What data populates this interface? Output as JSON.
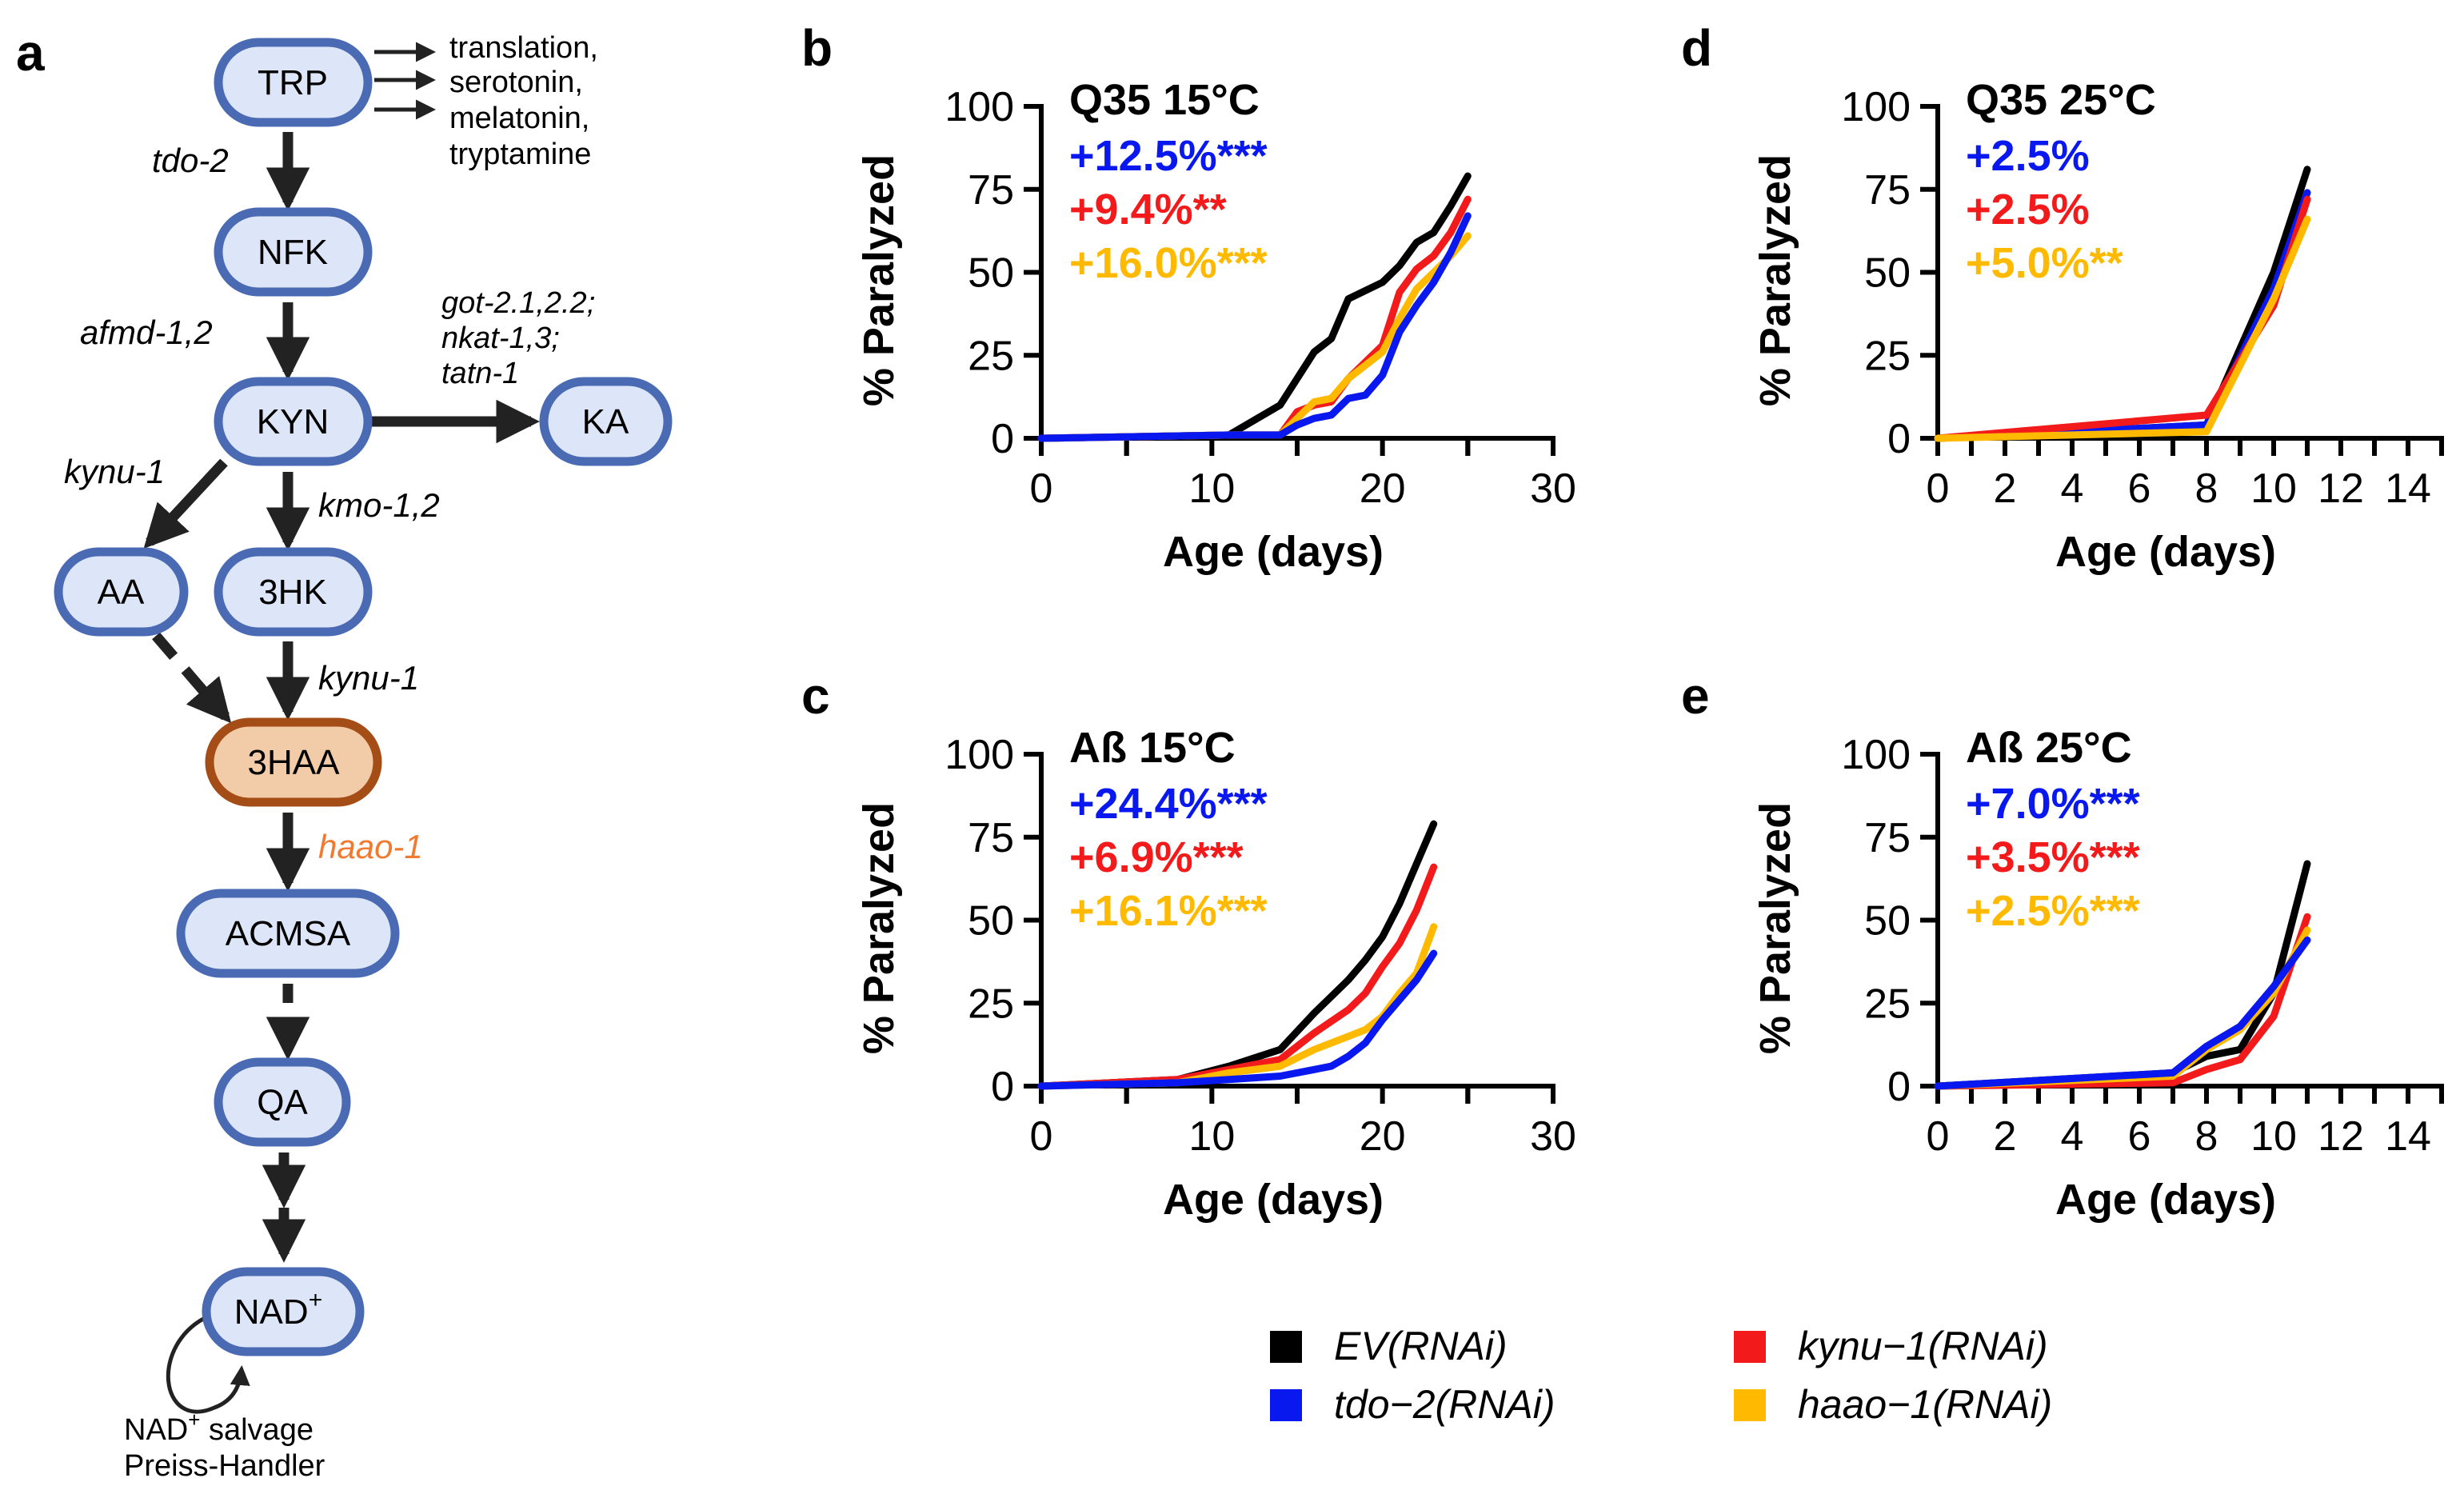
{
  "colors": {
    "black": "#000000",
    "blue": "#0a18f0",
    "red": "#f21a1a",
    "gold": "#ffba00",
    "node_fill": "#dde6f8",
    "node_stroke": "#4a6ab4",
    "hl_fill": "#f2cba8",
    "hl_stroke": "#a54d16",
    "hl_text": "#f07a30"
  },
  "panel_a": {
    "letter": "a",
    "nodes": [
      {
        "id": "trp",
        "label": "TRP"
      },
      {
        "id": "nfk",
        "label": "NFK"
      },
      {
        "id": "kyn",
        "label": "KYN"
      },
      {
        "id": "ka",
        "label": "KA"
      },
      {
        "id": "aa",
        "label": "AA"
      },
      {
        "id": "3hk",
        "label": "3HK"
      },
      {
        "id": "3haa",
        "label": "3HAA"
      },
      {
        "id": "acmsa",
        "label": "ACMSA"
      },
      {
        "id": "qa",
        "label": "QA"
      },
      {
        "id": "nad",
        "label": "NAD",
        "sup": "+"
      }
    ],
    "enzymes": {
      "tdo": "tdo-2",
      "afmd": "afmd-1,2",
      "ka_enzymes": [
        "got-2.1,2.2;",
        "nkat-1,3;",
        "tatn-1"
      ],
      "kynu_left": "kynu-1",
      "kmo": "kmo-1,2",
      "kynu_right": "kynu-1",
      "haao": "haao-1"
    },
    "trp_fates": [
      "translation,",
      "serotonin,",
      "melatonin,",
      "tryptamine"
    ],
    "salvage": {
      "line1_pre": "NAD",
      "line1_sup": "+",
      "line1_post": " salvage",
      "line2": "Preiss-Handler"
    }
  },
  "legend": [
    {
      "label": "EV(RNAi)",
      "color": "#000000"
    },
    {
      "label": "tdo−2(RNAi)",
      "color": "#0a18f0"
    },
    {
      "label": "kynu−1(RNAi)",
      "color": "#f21a1a"
    },
    {
      "label": "haao−1(RNAi)",
      "color": "#ffba00"
    }
  ],
  "chart_data": [
    {
      "panel": "b",
      "type": "line",
      "title": "Q35 15°C",
      "xlabel": "Age (days)",
      "ylabel": "% Paralyzed",
      "xlim": [
        0,
        30
      ],
      "ylim": [
        0,
        100
      ],
      "xticks": [
        0,
        10,
        20,
        30
      ],
      "yticks": [
        0,
        25,
        50,
        75,
        100
      ],
      "annotations": [
        {
          "value": "+12.5%",
          "stars": "***",
          "color": "#0a18f0"
        },
        {
          "value": "+9.4%",
          "stars": "**",
          "color": "#f21a1a"
        },
        {
          "value": "+16.0%",
          "stars": "***",
          "color": "#ffba00"
        }
      ],
      "series": [
        {
          "name": "EV(RNAi)",
          "color": "#000000",
          "x": [
            0,
            11,
            14,
            16,
            17,
            18,
            20,
            21,
            22,
            23,
            24,
            25
          ],
          "y": [
            0,
            1,
            10,
            26,
            30,
            42,
            47,
            52,
            59,
            62,
            70,
            79
          ]
        },
        {
          "name": "kynu−1(RNAi)",
          "color": "#f21a1a",
          "x": [
            0,
            11,
            14,
            15,
            16,
            17,
            18,
            20,
            21,
            22,
            23,
            24,
            25
          ],
          "y": [
            0,
            1,
            1,
            8,
            10,
            11,
            18,
            28,
            44,
            51,
            55,
            62,
            72
          ]
        },
        {
          "name": "haao−1(RNAi)",
          "color": "#ffba00",
          "x": [
            0,
            11,
            14,
            15,
            16,
            17,
            18,
            20,
            21,
            22,
            23,
            24,
            25
          ],
          "y": [
            0,
            1,
            1,
            6,
            11,
            12,
            18,
            26,
            36,
            45,
            50,
            55,
            61
          ]
        },
        {
          "name": "tdo−2(RNAi)",
          "color": "#0a18f0",
          "x": [
            0,
            11,
            14,
            15,
            16,
            17,
            18,
            19,
            20,
            21,
            22,
            23,
            24,
            25
          ],
          "y": [
            0,
            1,
            1,
            4,
            6,
            7,
            12,
            13,
            19,
            32,
            40,
            47,
            56,
            67
          ]
        }
      ]
    },
    {
      "panel": "c",
      "type": "line",
      "title": "Aß 15°C",
      "xlabel": "Age (days)",
      "ylabel": "% Paralyzed",
      "xlim": [
        0,
        30
      ],
      "ylim": [
        0,
        100
      ],
      "xticks": [
        0,
        10,
        20,
        30
      ],
      "yticks": [
        0,
        25,
        50,
        75,
        100
      ],
      "annotations": [
        {
          "value": "+24.4%",
          "stars": "***",
          "color": "#0a18f0"
        },
        {
          "value": "+6.9%",
          "stars": "***",
          "color": "#f21a1a"
        },
        {
          "value": "+16.1%",
          "stars": "***",
          "color": "#ffba00"
        }
      ],
      "series": [
        {
          "name": "EV(RNAi)",
          "color": "#000000",
          "x": [
            0,
            8,
            11,
            14,
            16,
            18,
            19,
            20,
            21,
            22,
            23
          ],
          "y": [
            0,
            2,
            6,
            11,
            22,
            32,
            38,
            45,
            55,
            67,
            79
          ]
        },
        {
          "name": "kynu−1(RNAi)",
          "color": "#f21a1a",
          "x": [
            0,
            8,
            11,
            14,
            16,
            18,
            19,
            20,
            21,
            22,
            23
          ],
          "y": [
            0,
            2,
            5,
            8,
            16,
            23,
            28,
            36,
            43,
            53,
            66
          ]
        },
        {
          "name": "haao−1(RNAi)",
          "color": "#ffba00",
          "x": [
            0,
            8,
            11,
            14,
            16,
            18,
            19,
            20,
            21,
            22,
            23
          ],
          "y": [
            0,
            1,
            4,
            6,
            11,
            15,
            17,
            21,
            28,
            34,
            48
          ]
        },
        {
          "name": "tdo−2(RNAi)",
          "color": "#0a18f0",
          "x": [
            0,
            8,
            11,
            14,
            16,
            17,
            18,
            19,
            20,
            21,
            22,
            23
          ],
          "y": [
            0,
            1,
            2,
            3,
            5,
            6,
            9,
            13,
            20,
            26,
            32,
            40
          ]
        }
      ]
    },
    {
      "panel": "d",
      "type": "line",
      "title": "Q35 25°C",
      "xlabel": "Age (days)",
      "ylabel": "% Paralyzed",
      "xlim": [
        0,
        15
      ],
      "ylim": [
        0,
        100
      ],
      "xticks": [
        0,
        2,
        4,
        6,
        8,
        10,
        12,
        14
      ],
      "yticks": [
        0,
        25,
        50,
        75,
        100
      ],
      "annotations": [
        {
          "value": "+2.5%",
          "stars": "",
          "color": "#0a18f0"
        },
        {
          "value": "+2.5%",
          "stars": "",
          "color": "#f21a1a"
        },
        {
          "value": "+5.0%",
          "stars": "**",
          "color": "#ffba00"
        }
      ],
      "series": [
        {
          "name": "EV(RNAi)",
          "color": "#000000",
          "x": [
            0,
            8,
            10,
            11
          ],
          "y": [
            0,
            4,
            50,
            81
          ]
        },
        {
          "name": "tdo−2(RNAi)",
          "color": "#0a18f0",
          "x": [
            0,
            8,
            10,
            11
          ],
          "y": [
            0,
            4,
            45,
            74
          ]
        },
        {
          "name": "kynu−1(RNAi)",
          "color": "#f21a1a",
          "x": [
            0,
            8,
            10,
            11
          ],
          "y": [
            0,
            7,
            40,
            72
          ]
        },
        {
          "name": "haao−1(RNAi)",
          "color": "#ffba00",
          "x": [
            0,
            8,
            10,
            11
          ],
          "y": [
            0,
            2,
            42,
            66
          ]
        }
      ]
    },
    {
      "panel": "e",
      "type": "line",
      "title": "Aß 25°C",
      "xlabel": "Age (days)",
      "ylabel": "% Paralyzed",
      "xlim": [
        0,
        15
      ],
      "ylim": [
        0,
        100
      ],
      "xticks": [
        0,
        2,
        4,
        6,
        8,
        10,
        12,
        14
      ],
      "yticks": [
        0,
        25,
        50,
        75,
        100
      ],
      "annotations": [
        {
          "value": "+7.0%",
          "stars": "***",
          "color": "#0a18f0"
        },
        {
          "value": "+3.5%",
          "stars": "***",
          "color": "#f21a1a"
        },
        {
          "value": "+2.5%",
          "stars": "***",
          "color": "#ffba00"
        }
      ],
      "series": [
        {
          "name": "EV(RNAi)",
          "color": "#000000",
          "x": [
            0,
            7,
            8,
            9,
            10,
            11
          ],
          "y": [
            0,
            4,
            9,
            11,
            28,
            67
          ]
        },
        {
          "name": "kynu−1(RNAi)",
          "color": "#f21a1a",
          "x": [
            0,
            7,
            8,
            9,
            10,
            11
          ],
          "y": [
            0,
            1,
            5,
            8,
            21,
            51
          ]
        },
        {
          "name": "haao−1(RNAi)",
          "color": "#ffba00",
          "x": [
            0,
            7,
            8,
            9,
            10,
            11
          ],
          "y": [
            0,
            3,
            11,
            17,
            28,
            47
          ]
        },
        {
          "name": "tdo−2(RNAi)",
          "color": "#0a18f0",
          "x": [
            0,
            7,
            8,
            9,
            10,
            11
          ],
          "y": [
            0,
            4,
            12,
            18,
            30,
            44
          ]
        }
      ]
    }
  ]
}
